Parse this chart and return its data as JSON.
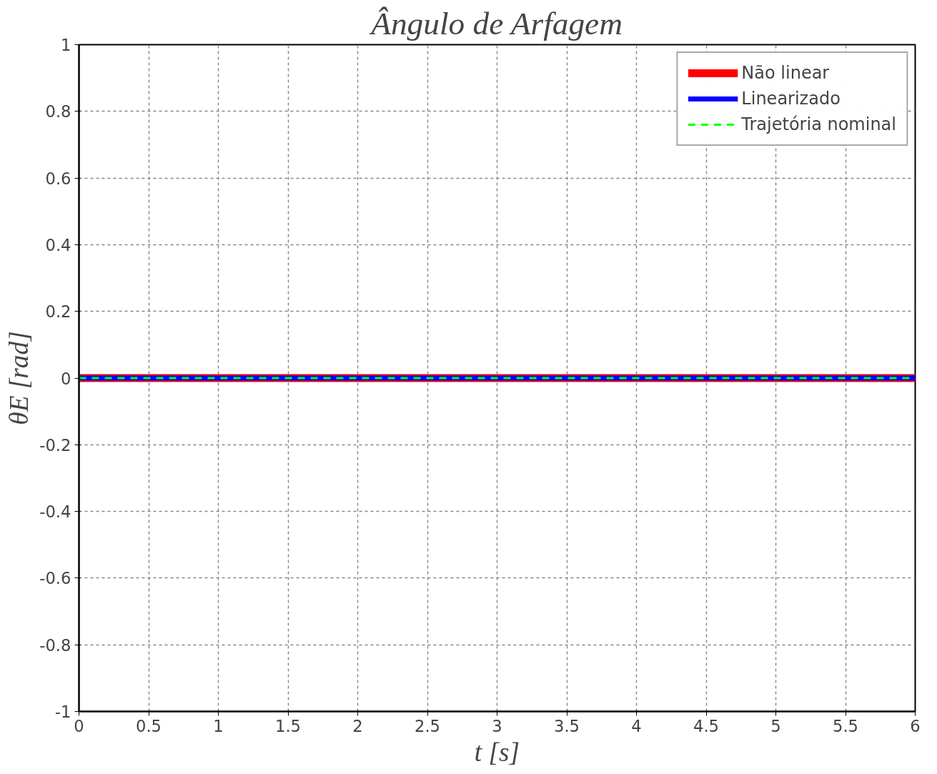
{
  "chart_data": {
    "type": "line",
    "title": "Ângulo de Arfagem",
    "xlabel": "t [s]",
    "ylabel": "θE [rad]",
    "x": [
      0,
      6
    ],
    "series": [
      {
        "name": "Não linear",
        "color": "#ff0000",
        "values": [
          0,
          0
        ],
        "line_style": "solid"
      },
      {
        "name": "Linearizado",
        "color": "#0000ff",
        "values": [
          0,
          0
        ],
        "line_style": "solid"
      },
      {
        "name": "Trajetória nominal",
        "color": "#00ff00",
        "values": [
          0,
          0
        ],
        "line_style": "dashed"
      }
    ],
    "xlim": [
      0,
      6
    ],
    "ylim": [
      -1,
      1
    ],
    "xticks": [
      0,
      0.5,
      1,
      1.5,
      2,
      2.5,
      3,
      3.5,
      4,
      4.5,
      5,
      5.5,
      6
    ],
    "yticks": [
      -1,
      -0.8,
      -0.6,
      -0.4,
      -0.2,
      0,
      0.2,
      0.4,
      0.6,
      0.8,
      1
    ],
    "grid": true,
    "legend": "top right",
    "marker": "none"
  }
}
